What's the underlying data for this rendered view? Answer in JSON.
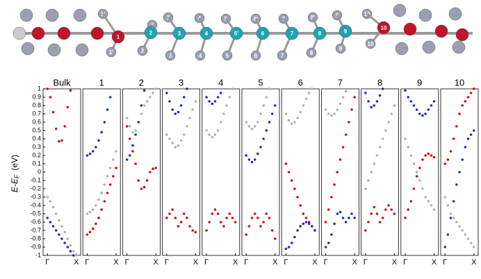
{
  "structure": {
    "labels_top": [
      "1'",
      "2",
      "3",
      "4",
      "5",
      "6'",
      "7",
      "8'",
      "9",
      "10"
    ],
    "labels_middle": [
      "1",
      "2",
      "3",
      "4",
      "5'",
      "6",
      "7",
      "8",
      "9",
      "10"
    ],
    "labels_bottom": [
      "1'",
      "2",
      "3",
      "4",
      "5",
      "6",
      "7",
      "8",
      "9",
      "10"
    ]
  },
  "chart_data": [
    {
      "type": "scatter",
      "title": "Bulk",
      "ylabel": "E-E",
      "ylabel_sub": "F",
      "ylabel_unit": "(eV)",
      "x": [
        0,
        0.1,
        0.2,
        0.3,
        0.4,
        0.5,
        0.6,
        0.7,
        0.8,
        0.9,
        1
      ],
      "xlim": [
        -0.15,
        1.15
      ],
      "xticks": [
        {
          "value": 0,
          "label": "Γ"
        },
        {
          "value": 1,
          "label": "X"
        }
      ],
      "ylim": [
        -1,
        1
      ],
      "yticks": [
        1,
        0.9,
        0.8,
        0.7,
        0.6,
        0.5,
        0.4,
        0.3,
        0.2,
        0.1,
        0,
        -0.1,
        -0.2,
        -0.3,
        -0.4,
        -0.5,
        -0.6,
        -0.7,
        -0.8,
        -0.9,
        -1
      ],
      "series": [
        {
          "color": "#b0b0b0",
          "values": [
            -0.3,
            -0.35,
            -0.42,
            -0.5,
            -0.58,
            -0.65,
            -0.72,
            -0.8,
            -0.88,
            -0.95,
            -1
          ]
        },
        {
          "color": "#d01010",
          "values": [
            1,
            0.9,
            0.72,
            0.52,
            0.37,
            0.38,
            0.55,
            0.78,
            0.98,
            null,
            null
          ]
        },
        {
          "color": "#2030c0",
          "values": [
            -0.55,
            -0.6,
            -0.65,
            -0.7,
            -0.75,
            -0.8,
            -0.85,
            -0.9,
            -0.95,
            -1,
            null
          ]
        }
      ]
    },
    {
      "type": "scatter",
      "title": "1",
      "x": [
        0,
        0.1,
        0.2,
        0.3,
        0.4,
        0.5,
        0.6,
        0.7,
        0.8,
        0.9,
        1
      ],
      "xlim": [
        -0.15,
        1.15
      ],
      "xticks": [
        {
          "value": 0,
          "label": "Γ"
        },
        {
          "value": 1,
          "label": "X"
        }
      ],
      "ylim": [
        -1,
        1
      ],
      "series": [
        {
          "color": "#b0b0b0",
          "values": [
            -0.5,
            -0.48,
            -0.45,
            -0.4,
            -0.33,
            -0.25,
            -0.15,
            -0.05,
            0.05,
            0.15,
            0.25
          ]
        },
        {
          "color": "#d01010",
          "values": [
            -0.75,
            -0.72,
            -0.68,
            -0.62,
            -0.55,
            -0.45,
            -0.35,
            -0.25,
            -0.15,
            -0.05,
            0.05
          ]
        },
        {
          "color": "#2030c0",
          "values": [
            0.2,
            0.22,
            0.25,
            0.3,
            0.38,
            0.48,
            0.6,
            0.75,
            0.9,
            null,
            null
          ]
        }
      ]
    },
    {
      "type": "scatter",
      "title": "2",
      "x": [
        0,
        0.1,
        0.2,
        0.3,
        0.4,
        0.5,
        0.6,
        0.7,
        0.8,
        0.9,
        1
      ],
      "xlim": [
        -0.15,
        1.15
      ],
      "xticks": [
        {
          "value": 0,
          "label": "Γ"
        },
        {
          "value": 1,
          "label": "X"
        }
      ],
      "ylim": [
        -1,
        1
      ],
      "series": [
        {
          "color": "#b0b0b0",
          "values": [
            0.65,
            0.55,
            0.48,
            0.5,
            0.6,
            0.7,
            0.8,
            0.85,
            0.9,
            0.95,
            1
          ]
        },
        {
          "color": "#d01010",
          "values": [
            0.55,
            0.4,
            0.25,
            0.1,
            -0.1,
            -0.2,
            -0.18,
            -0.1,
            0,
            0.04,
            0.05
          ]
        },
        {
          "color": "#2030c0",
          "values": [
            0.15,
            0.2,
            0.32,
            0.45,
            0.6,
            0.8,
            0.98,
            null,
            null,
            null,
            null
          ]
        }
      ]
    },
    {
      "type": "scatter",
      "title": "3",
      "x": [
        0,
        0.1,
        0.2,
        0.3,
        0.4,
        0.5,
        0.6,
        0.7,
        0.8,
        0.9,
        1
      ],
      "xlim": [
        -0.15,
        1.15
      ],
      "xticks": [
        {
          "value": 0,
          "label": "Γ"
        },
        {
          "value": 1,
          "label": "X"
        }
      ],
      "ylim": [
        -1,
        1
      ],
      "series": [
        {
          "color": "#b0b0b0",
          "values": [
            0.45,
            0.4,
            0.35,
            0.3,
            0.32,
            0.38,
            0.45,
            0.55,
            0.65,
            0.75,
            0.85
          ]
        },
        {
          "color": "#d01010",
          "values": [
            -0.55,
            -0.5,
            -0.45,
            -0.55,
            -0.65,
            -0.6,
            -0.5,
            -0.55,
            -0.65,
            -0.7,
            -0.72
          ]
        },
        {
          "color": "#2030c0",
          "values": [
            0.95,
            0.85,
            0.75,
            0.7,
            0.72,
            0.8,
            0.9,
            1,
            null,
            null,
            null
          ]
        }
      ]
    },
    {
      "type": "scatter",
      "title": "4",
      "x": [
        0,
        0.1,
        0.2,
        0.3,
        0.4,
        0.5,
        0.6,
        0.7,
        0.8,
        0.9,
        1
      ],
      "xlim": [
        -0.15,
        1.15
      ],
      "xticks": [
        {
          "value": 0,
          "label": "Γ"
        },
        {
          "value": 1,
          "label": "X"
        }
      ],
      "ylim": [
        -1,
        1
      ],
      "series": [
        {
          "color": "#b0b0b0",
          "values": [
            0.5,
            0.45,
            0.42,
            0.45,
            0.5,
            0.6,
            0.7,
            0.8,
            0.9,
            1,
            null
          ]
        },
        {
          "color": "#d01010",
          "values": [
            -0.7,
            -0.6,
            -0.5,
            -0.45,
            -0.5,
            -0.6,
            -0.65,
            -0.55,
            -0.5,
            -0.55,
            -0.6
          ]
        },
        {
          "color": "#2030c0",
          "values": [
            0.9,
            0.85,
            0.82,
            0.85,
            0.9,
            0.95,
            null,
            null,
            null,
            null,
            null
          ]
        }
      ]
    },
    {
      "type": "scatter",
      "title": "5",
      "x": [
        0,
        0.1,
        0.2,
        0.3,
        0.4,
        0.5,
        0.6,
        0.7,
        0.8,
        0.9,
        1
      ],
      "xlim": [
        -0.15,
        1.15
      ],
      "xticks": [
        {
          "value": 0,
          "label": "Γ"
        },
        {
          "value": 1,
          "label": "X"
        }
      ],
      "ylim": [
        -1,
        1
      ],
      "series": [
        {
          "color": "#b0b0b0",
          "values": [
            0.6,
            0.55,
            0.52,
            0.55,
            0.6,
            0.7,
            0.8,
            0.9,
            1,
            null,
            null
          ]
        },
        {
          "color": "#d01010",
          "values": [
            -0.75,
            -0.65,
            -0.55,
            -0.5,
            -0.55,
            -0.65,
            -0.6,
            -0.5,
            -0.55,
            -0.7,
            -0.8
          ]
        },
        {
          "color": "#2030c0",
          "values": [
            0.2,
            0.15,
            0.12,
            0.15,
            0.22,
            0.3,
            0.4,
            0.5,
            0.6,
            0.7,
            0.8
          ]
        }
      ]
    },
    {
      "type": "scatter",
      "title": "6",
      "x": [
        0,
        0.1,
        0.2,
        0.3,
        0.4,
        0.5,
        0.6,
        0.7,
        0.8,
        0.9,
        1
      ],
      "xlim": [
        -0.15,
        1.15
      ],
      "xticks": [
        {
          "value": 0,
          "label": "Γ"
        },
        {
          "value": 1,
          "label": "X"
        }
      ],
      "ylim": [
        -1,
        1
      ],
      "series": [
        {
          "color": "#b0b0b0",
          "values": [
            0.7,
            0.62,
            0.58,
            0.6,
            0.65,
            0.72,
            0.8,
            0.88,
            0.95,
            1,
            null
          ]
        },
        {
          "color": "#d01010",
          "values": [
            0.1,
            0,
            -0.1,
            -0.2,
            -0.3,
            -0.4,
            -0.5,
            -0.55,
            -0.6,
            -0.65,
            -0.7
          ]
        },
        {
          "color": "#2030c0",
          "values": [
            -0.92,
            -0.9,
            -0.85,
            -0.78,
            -0.7,
            -0.65,
            -0.62,
            -0.6,
            -0.62,
            -0.65,
            -0.7
          ]
        }
      ]
    },
    {
      "type": "scatter",
      "title": "7",
      "x": [
        0,
        0.1,
        0.2,
        0.3,
        0.4,
        0.5,
        0.6,
        0.7,
        0.8,
        0.9,
        1
      ],
      "xlim": [
        -0.15,
        1.15
      ],
      "xticks": [
        {
          "value": 0,
          "label": "Γ"
        },
        {
          "value": 1,
          "label": "X"
        }
      ],
      "ylim": [
        -1,
        1
      ],
      "series": [
        {
          "color": "#b0b0b0",
          "values": [
            0.75,
            0.7,
            0.68,
            0.7,
            0.75,
            0.82,
            0.9,
            0.97,
            null,
            null,
            null
          ]
        },
        {
          "color": "#d01010",
          "values": [
            -0.6,
            -0.45,
            -0.3,
            -0.15,
            0,
            0.15,
            0.3,
            0.45,
            0.6,
            0.75,
            0.9
          ]
        },
        {
          "color": "#2030c0",
          "values": [
            -0.9,
            -0.85,
            -0.75,
            -0.62,
            -0.5,
            -0.48,
            -0.55,
            -0.6,
            -0.55,
            -0.5,
            -0.55
          ]
        }
      ]
    },
    {
      "type": "scatter",
      "title": "8",
      "x": [
        0,
        0.1,
        0.2,
        0.3,
        0.4,
        0.5,
        0.6,
        0.7,
        0.8,
        0.9,
        1
      ],
      "xlim": [
        -0.15,
        1.15
      ],
      "xticks": [
        {
          "value": 0,
          "label": "Γ"
        },
        {
          "value": 1,
          "label": "X"
        }
      ],
      "ylim": [
        -1,
        1
      ],
      "series": [
        {
          "color": "#b0b0b0",
          "values": [
            -0.2,
            -0.1,
            0,
            0.1,
            0.2,
            0.3,
            0.4,
            0.5,
            0.6,
            0.7,
            0.8
          ]
        },
        {
          "color": "#d01010",
          "values": [
            -0.7,
            -0.6,
            -0.5,
            -0.42,
            -0.5,
            -0.6,
            -0.55,
            -0.45,
            -0.4,
            -0.45,
            -0.5
          ]
        },
        {
          "color": "#2030c0",
          "values": [
            0.95,
            0.85,
            0.78,
            0.8,
            0.85,
            0.92,
            1,
            null,
            null,
            null,
            null
          ]
        }
      ]
    },
    {
      "type": "scatter",
      "title": "9",
      "x": [
        0,
        0.1,
        0.2,
        0.3,
        0.4,
        0.5,
        0.6,
        0.7,
        0.8,
        0.9,
        1
      ],
      "xlim": [
        -0.15,
        1.15
      ],
      "xticks": [
        {
          "value": 0,
          "label": "Γ"
        },
        {
          "value": 1,
          "label": "X"
        }
      ],
      "ylim": [
        -1,
        1
      ],
      "series": [
        {
          "color": "#b0b0b0",
          "values": [
            0.4,
            0.3,
            0.2,
            0.1,
            0,
            -0.1,
            -0.2,
            -0.3,
            -0.35,
            -0.4,
            -0.45
          ]
        },
        {
          "color": "#d01010",
          "values": [
            -0.55,
            -0.45,
            -0.35,
            -0.2,
            -0.05,
            0.05,
            0.15,
            0.2,
            0.22,
            0.2,
            0.18
          ]
        },
        {
          "color": "#2030c0",
          "values": [
            0.98,
            0.9,
            0.85,
            0.8,
            0.75,
            0.7,
            0.68,
            0.7,
            0.75,
            0.8,
            0.85
          ]
        }
      ]
    },
    {
      "type": "scatter",
      "title": "10",
      "x": [
        0,
        0.1,
        0.2,
        0.3,
        0.4,
        0.5,
        0.6,
        0.7,
        0.8,
        0.9,
        1
      ],
      "xlim": [
        -0.15,
        1.15
      ],
      "xticks": [
        {
          "value": 0,
          "label": "Γ"
        },
        {
          "value": 1,
          "label": "X"
        }
      ],
      "ylim": [
        -1,
        1
      ],
      "series": [
        {
          "color": "#b0b0b0",
          "values": [
            -0.3,
            -0.4,
            -0.5,
            -0.55,
            -0.6,
            -0.65,
            -0.7,
            -0.75,
            -0.8,
            -0.85,
            -0.9
          ]
        },
        {
          "color": "#d01010",
          "values": [
            0.1,
            0.15,
            0.25,
            0.4,
            0.55,
            0.7,
            0.8,
            0.85,
            0.9,
            0.95,
            1
          ]
        },
        {
          "color": "#2030c0",
          "values": [
            -0.9,
            -0.75,
            -0.55,
            -0.35,
            -0.15,
            0,
            0.15,
            0.3,
            0.4,
            0.45,
            0.5
          ]
        }
      ]
    }
  ]
}
